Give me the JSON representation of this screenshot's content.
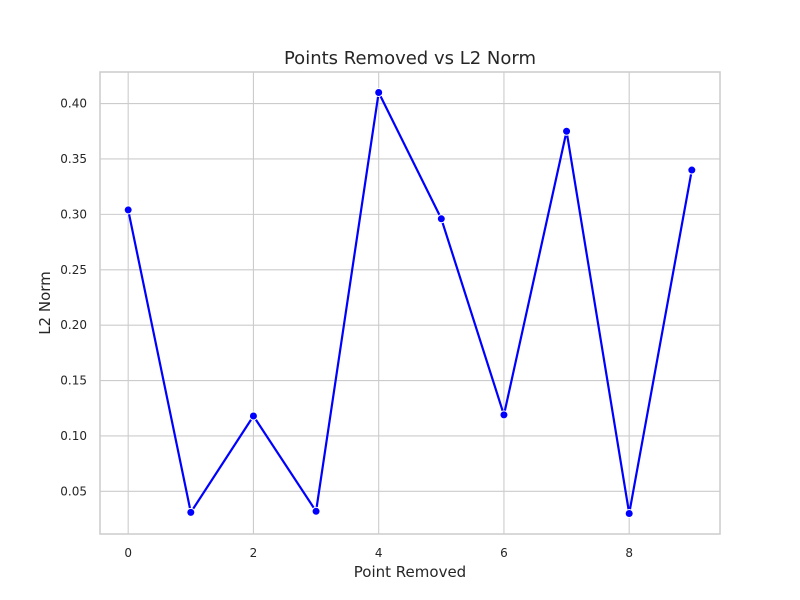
{
  "chart_data": {
    "type": "line",
    "title": "Points Removed vs L2 Norm",
    "xlabel": "Point Removed",
    "ylabel": "L2 Norm",
    "x": [
      0,
      1,
      2,
      3,
      4,
      5,
      6,
      7,
      8,
      9
    ],
    "series": [
      {
        "values": [
          0.304,
          0.031,
          0.118,
          0.032,
          0.41,
          0.296,
          0.119,
          0.375,
          0.03,
          0.34
        ],
        "color": "#0000ff",
        "marker": "circle"
      }
    ],
    "xlim": [
      -0.45,
      9.45
    ],
    "ylim": [
      0.0115,
      0.4285
    ],
    "xticks": [
      0,
      2,
      4,
      6,
      8
    ],
    "xtick_labels": [
      "0",
      "2",
      "4",
      "6",
      "8"
    ],
    "yticks": [
      0.05,
      0.1,
      0.15,
      0.2,
      0.25,
      0.3,
      0.35,
      0.4
    ],
    "ytick_labels": [
      "0.05",
      "0.10",
      "0.15",
      "0.20",
      "0.25",
      "0.30",
      "0.35",
      "0.40"
    ],
    "grid": true,
    "grid_color": "#cccccc",
    "frame_color": "#cccccc"
  }
}
